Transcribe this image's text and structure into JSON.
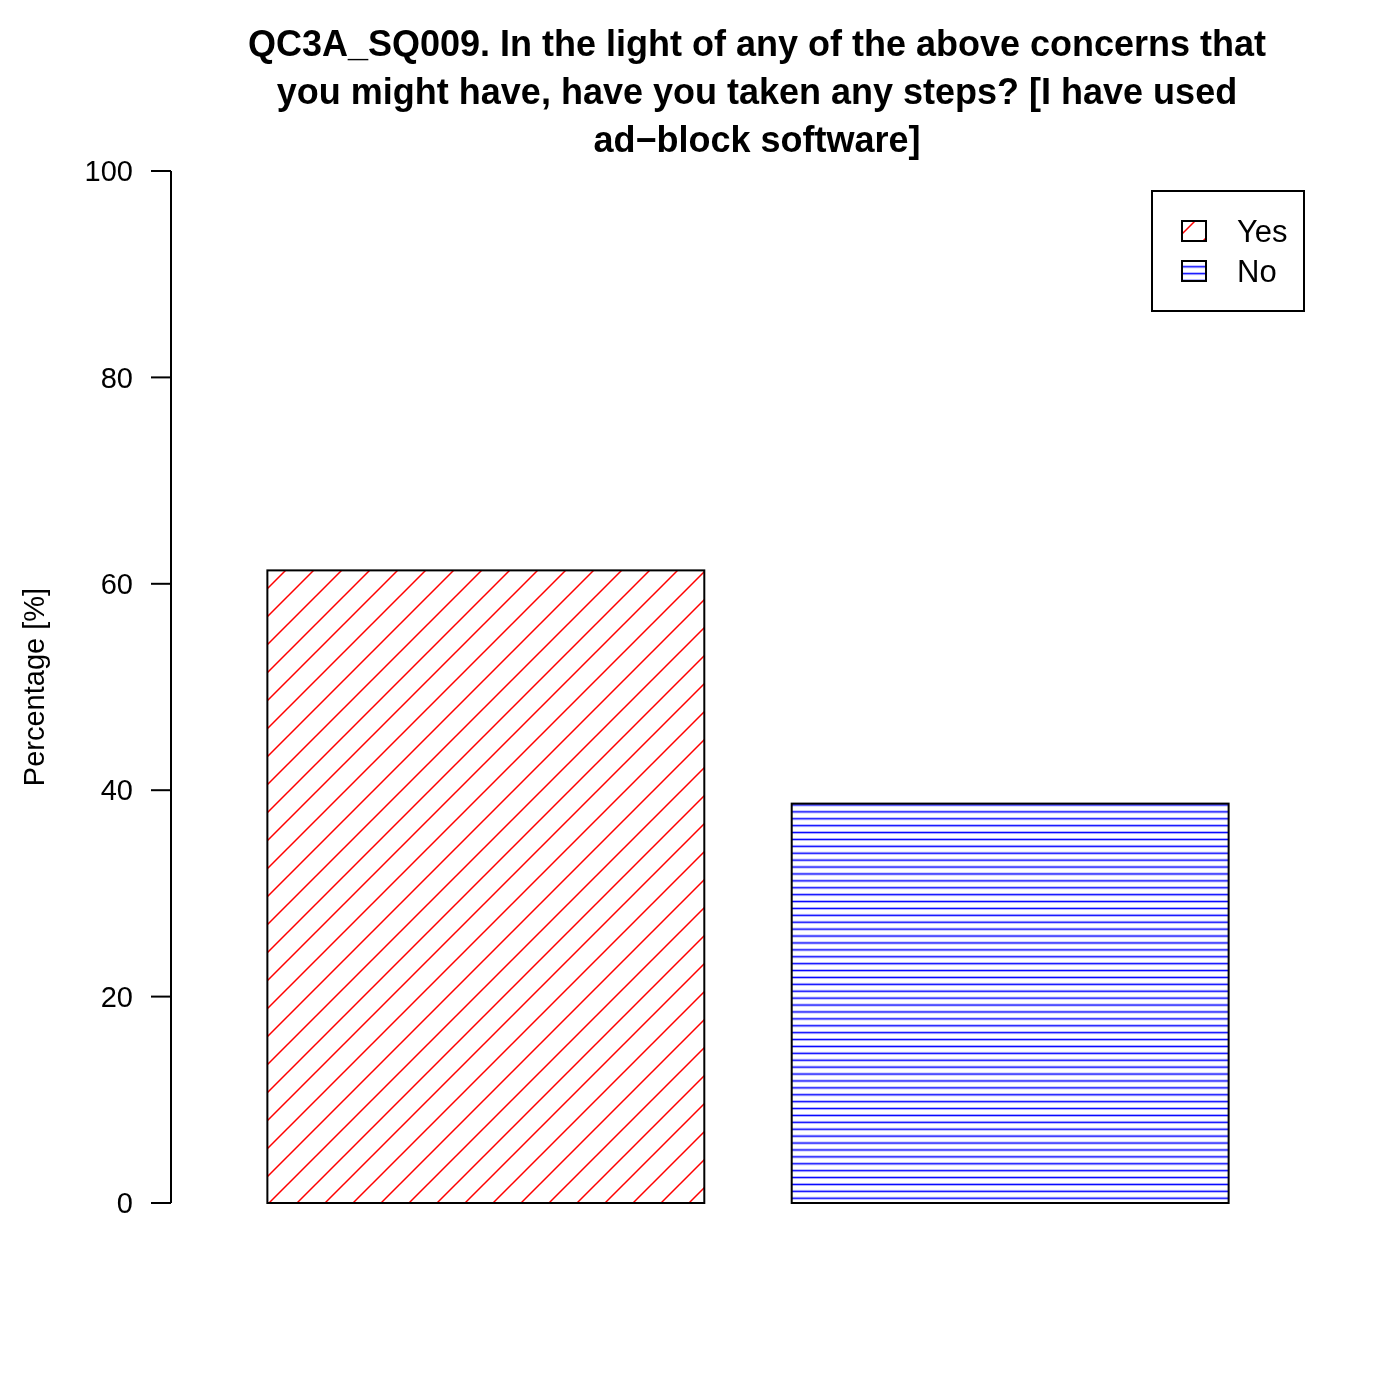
{
  "chart_data": {
    "type": "bar",
    "title": "QC3A_SQ009. In the light of any of the above concerns that you might have, have you taken any steps? [I have used ad−block software]",
    "ylabel": "Percentage [%]",
    "categories": [
      null,
      null
    ],
    "series": [
      {
        "name": "Yes",
        "color": "#ff0000",
        "values": [
          61.3,
          0
        ]
      },
      {
        "name": "No",
        "color": "#0000ff",
        "values": [
          0,
          38.7
        ]
      }
    ],
    "stacked": true,
    "ylim": [
      0,
      100
    ],
    "yticks": [
      0,
      20,
      40,
      60,
      80,
      100
    ],
    "grid": false,
    "legend": "top right"
  }
}
